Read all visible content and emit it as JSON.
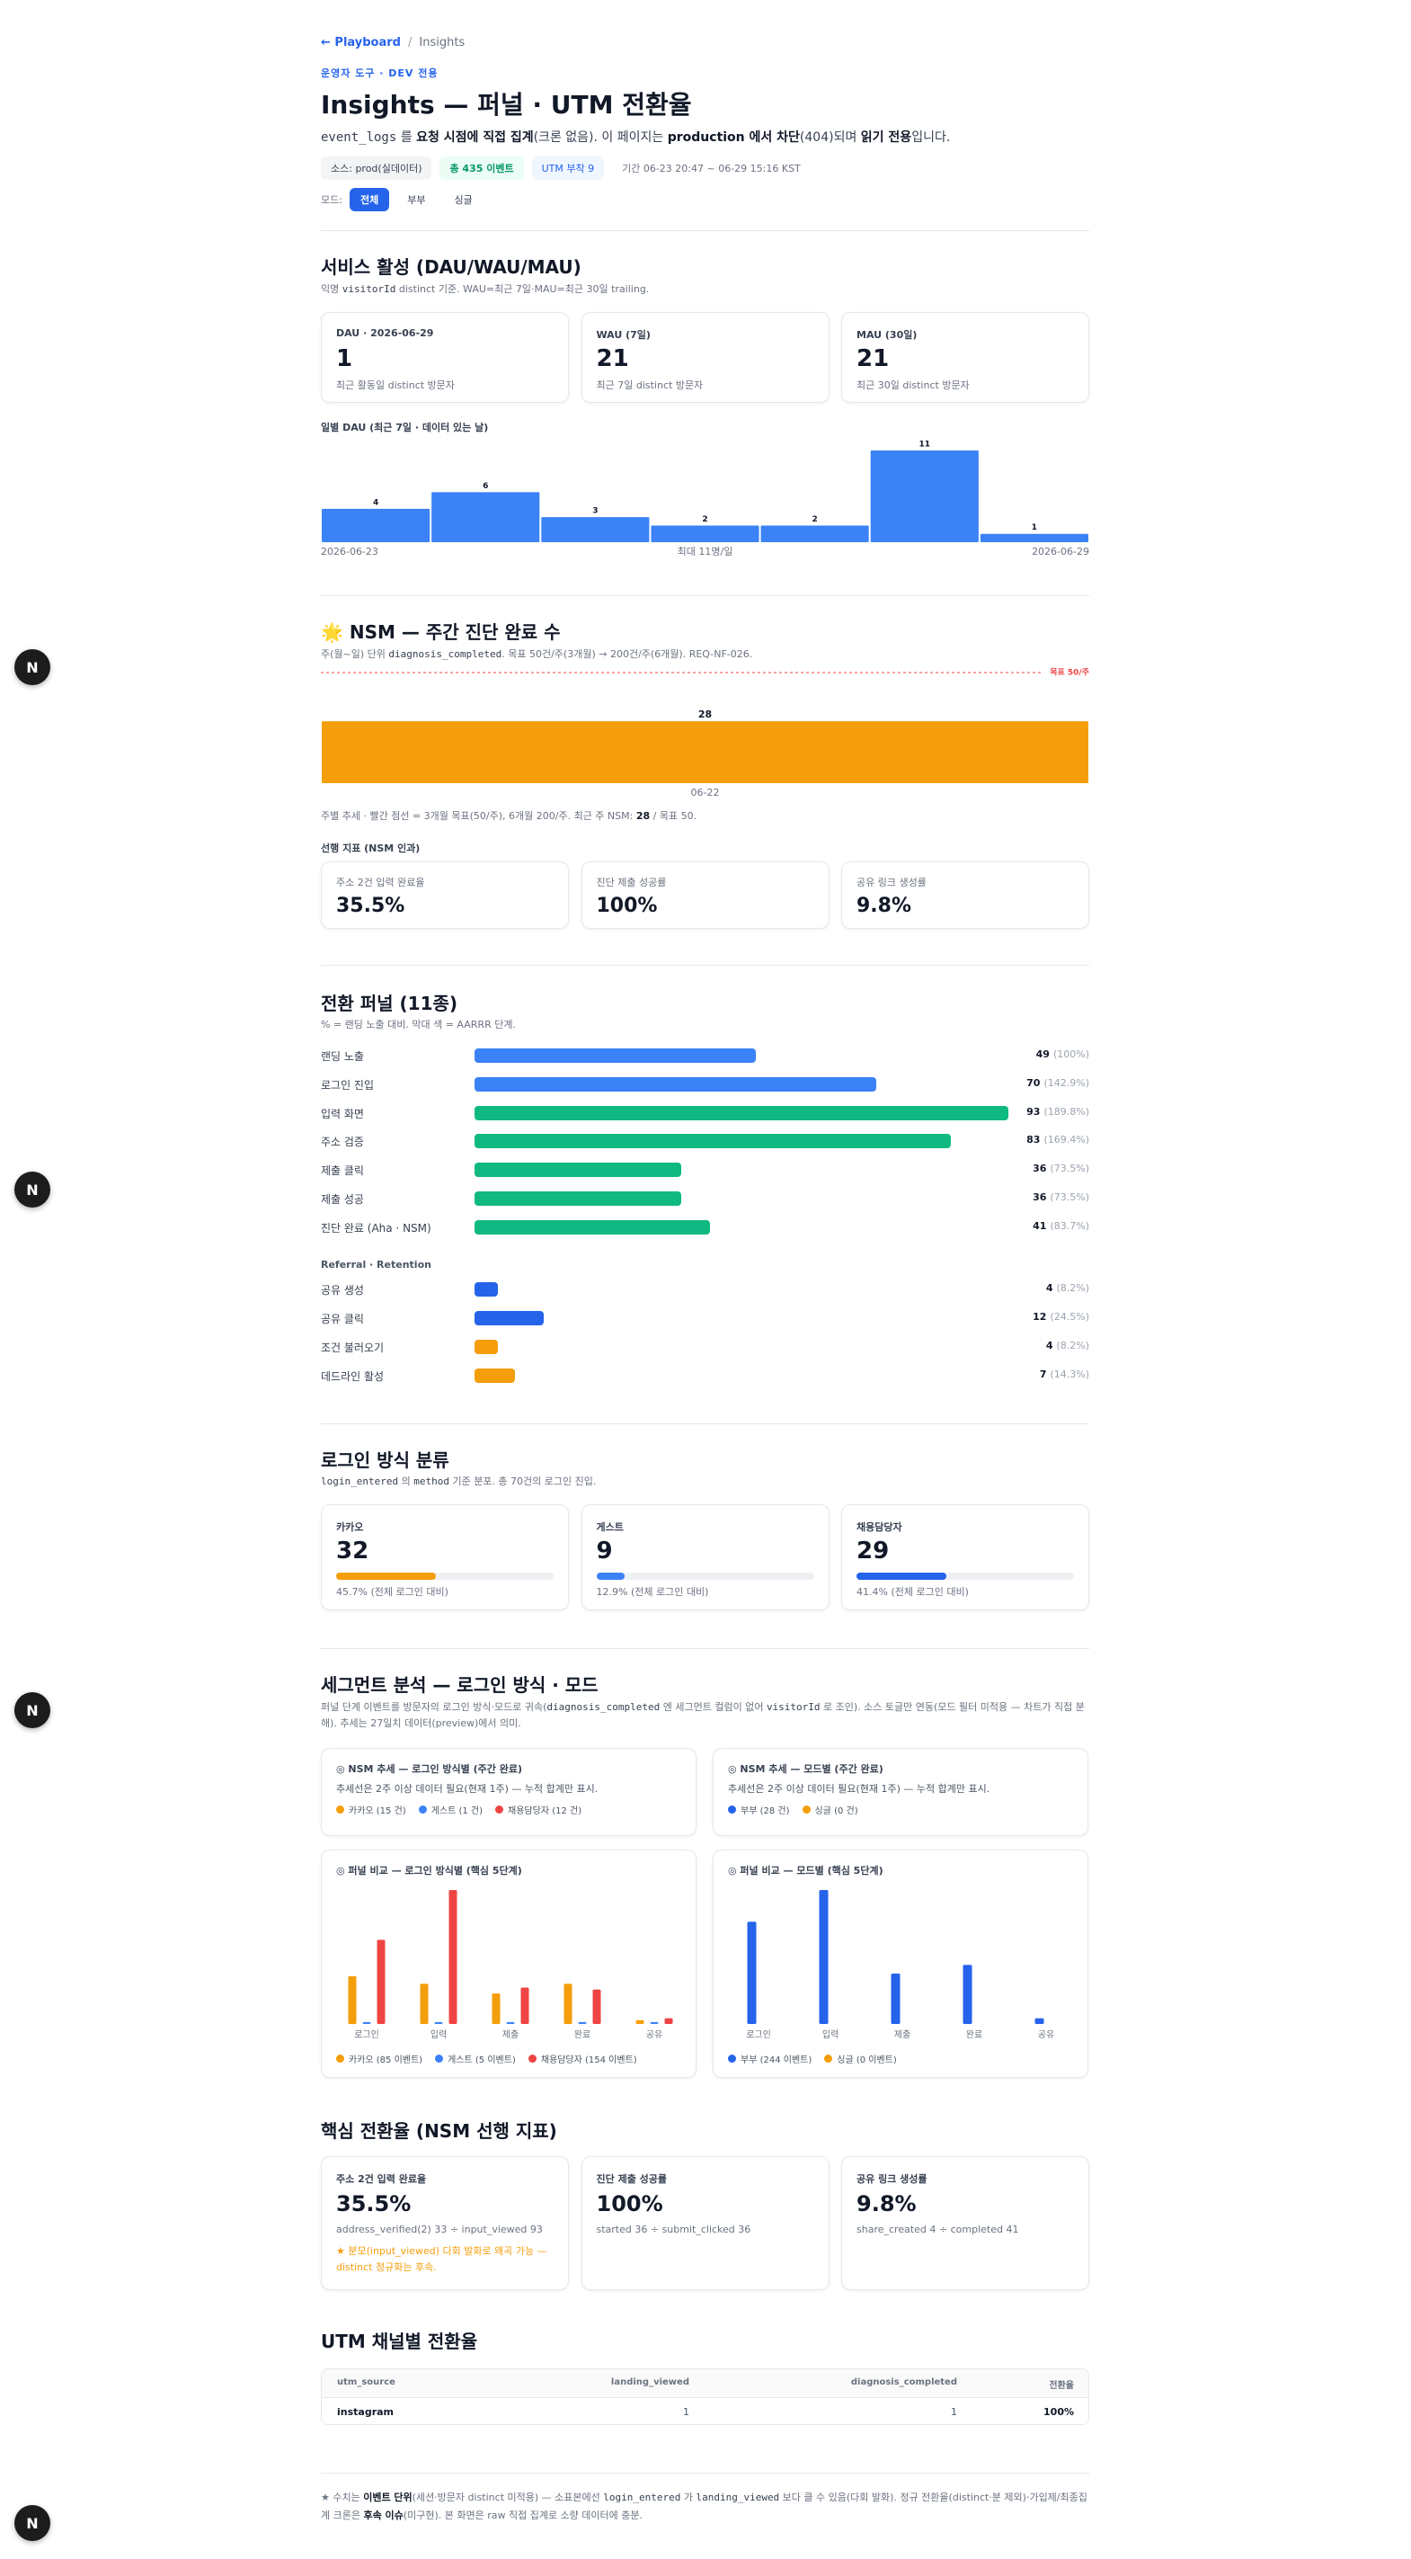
{
  "page": {
    "breadcrumb": {
      "link": "← Playboard",
      "sep": "/",
      "current": "Insights"
    },
    "eyebrow": "운영자 도구 · DEV 전용",
    "title": "Insights — 퍼널 · UTM 전환율",
    "description": [
      "event_logs",
      " 를 ",
      "요청 시점에 직접 집계",
      "(크론 없음). 이 페이지는 ",
      "production 에서 차단",
      "(404)되며 ",
      "읽기 전용",
      "입니다."
    ],
    "chips": [
      "소스: prod(실데이터)",
      "총 435 이벤트",
      "UTM 부착 9",
      "기간 06-23 20:47 ~ 06-29 15:16 KST"
    ],
    "mode": {
      "label": "모드:",
      "options": [
        "전체",
        "부부",
        "싱글"
      ]
    },
    "dev_indicator": "N"
  },
  "activity": {
    "title": "서비스 활성 (DAU/WAU/MAU)",
    "subtitle": [
      "익명 ",
      "visitorId",
      " distinct 기준. WAU=최근 7일·MAU=최근 30일 trailing."
    ],
    "cards": [
      {
        "label": "DAU · 2026-06-29",
        "value": "1",
        "note": "최근 활동일 distinct 방문자"
      },
      {
        "label": "WAU (7일)",
        "value": "21",
        "note": "최근 7일 distinct 방문자"
      },
      {
        "label": "MAU (30일)",
        "value": "21",
        "note": "최근 30일 distinct 방문자"
      }
    ]
  },
  "nsm": {
    "title": "🌟 NSM — 주간 진단 완료 수",
    "subtitle": [
      "주(월~일) 단위 ",
      "diagnosis_completed",
      ". 목표 50건/주(3개월) → 200건/주(6개월). REQ-NF-026."
    ],
    "note": [
      "주별 추세 · 빨간 점선 = 3개월 목표(50/주), 6개월 200/주. 최근 주 NSM: ",
      "28",
      " / 목표 50."
    ],
    "leading_title": "선행 지표 (NSM 인과)",
    "leading": [
      {
        "label": "주소 2건 입력 완료율",
        "value": "35.5%"
      },
      {
        "label": "진단 제출 성공률",
        "value": "100%"
      },
      {
        "label": "공유 링크 생성률",
        "value": "9.8%"
      }
    ]
  },
  "funnel": {
    "title": "전환 퍼널 (11종)",
    "subtitle": "% = 랜딩 노출 대비. 막대 색 = AARRR 단계."
  },
  "login": {
    "title": "로그인 방식 분류",
    "subtitle": [
      "login_entered",
      " 의 ",
      "method",
      " 기준 분포. 총 70건의 로그인 진입."
    ],
    "cards": [
      {
        "label": "카카오",
        "value": "32",
        "share": 45.7,
        "share_label": "45.7% (전체 로그인 대비)",
        "color": "#f59e0b"
      },
      {
        "label": "게스트",
        "value": "9",
        "share": 12.9,
        "share_label": "12.9% (전체 로그인 대비)",
        "color": "#3b82f6"
      },
      {
        "label": "채용담당자",
        "value": "29",
        "share": 41.4,
        "share_label": "41.4% (전체 로그인 대비)",
        "color": "#2563eb"
      }
    ]
  },
  "segment": {
    "title": "세그먼트 분석 — 로그인 방식 · 모드",
    "subtitle": [
      "퍼널 단계 이벤트를 방문자의 로그인 방식·모드로 귀속(",
      "diagnosis_completed",
      " 엔 세그먼트 컬럼이 없어 ",
      "visitorId",
      " 로 조인). 소스 토글만 연동(모드 필터 미적용 — 차트가 직접 분해). 추세는 27일치 데이터(preview)에서 의미."
    ],
    "trends": [
      {
        "title": "◎ NSM 추세 — 로그인 방식별 (주간 완료)",
        "note": "추세선은 2주 이상 데이터 필요(현재 1주) — 누적 합계만 표시.",
        "legend": [
          {
            "name": "카카오 (15 건)",
            "color": "#f59e0b"
          },
          {
            "name": "게스트 (1 건)",
            "color": "#3b82f6"
          },
          {
            "name": "채용담당자 (12 건)",
            "color": "#ef4444"
          }
        ]
      },
      {
        "title": "◎ NSM 추세 — 모드별 (주간 완료)",
        "note": "추세선은 2주 이상 데이터 필요(현재 1주) — 누적 합계만 표시.",
        "legend": [
          {
            "name": "부부 (28 건)",
            "color": "#2563eb"
          },
          {
            "name": "싱글 (0 건)",
            "color": "#f59e0b"
          }
        ]
      }
    ]
  },
  "core": {
    "title": "핵심 전환율 (NSM 선행 지표)",
    "cards": [
      {
        "label": "주소 2건 입력 완료율",
        "value": "35.5%",
        "formula": "address_verified(2) 33 ÷ input_viewed 93",
        "warning": "★ 분모(input_viewed) 다회 발화로 왜곡 가능 — distinct 정규화는 후속."
      },
      {
        "label": "진단 제출 성공률",
        "value": "100%",
        "formula": "started 36 ÷ submit_clicked 36"
      },
      {
        "label": "공유 링크 생성률",
        "value": "9.8%",
        "formula": "share_created 4 ÷ completed 41"
      }
    ]
  },
  "utm": {
    "title": "UTM 채널별 전환율",
    "table": {
      "headers": [
        "utm_source",
        "landing_viewed",
        "diagnosis_completed",
        "전환율"
      ],
      "rows": [
        [
          "instagram",
          "1",
          "1",
          "100%"
        ]
      ]
    }
  },
  "footnote": [
    "★ 수치는 ",
    "이벤트 단위",
    "(세션·방문자 distinct 미적용) — 소표본에선 ",
    "login_entered",
    " 가 ",
    "landing_viewed",
    " 보다 클 수 있음(다회 발화). 정규 전환율(distinct·분 제외)·가입제/최종집계 크론은 ",
    "후속 이슈",
    "(미구현). 본 화면은 raw 직접 집계로 소량 데이터에 충분."
  ],
  "chart_data": [
    {
      "type": "bar",
      "title": "일별 DAU (최근 7일 · 데이터 있는 날)",
      "categories": [
        "2026-06-23",
        null,
        null,
        null,
        null,
        null,
        "2026-06-29"
      ],
      "values": [
        4,
        6,
        3,
        2,
        2,
        11,
        1
      ],
      "ylim": [
        0,
        11
      ],
      "annotation": "최대 11명/일",
      "color": "#3b82f6"
    },
    {
      "type": "bar",
      "categories": [
        "06-22"
      ],
      "values": [
        28
      ],
      "ylim": [
        0,
        50
      ],
      "goal": {
        "value": 50,
        "label": "목표 50/주"
      },
      "color": "#f59e0b"
    },
    {
      "type": "hbar",
      "categories": [
        "랜딩 노출",
        "로그인 진입",
        "입력 화면",
        "주소 검증",
        "제출 클릭",
        "제출 성공",
        "진단 완료 (Aha · NSM)"
      ],
      "values": [
        49,
        70,
        93,
        83,
        36,
        36,
        41
      ],
      "shares": [
        "(100%)",
        "(142.9%)",
        "(189.8%)",
        "(169.4%)",
        "(73.5%)",
        "(73.5%)",
        "(83.7%)"
      ],
      "colors": [
        "#3b82f6",
        "#3b82f6",
        "#10b981",
        "#10b981",
        "#10b981",
        "#10b981",
        "#10b981"
      ],
      "xlim": [
        0,
        93
      ]
    },
    {
      "type": "hbar",
      "title": "Referral · Retention",
      "categories": [
        "공유 생성",
        "공유 클릭",
        "조건 불러오기",
        "데드라인 활성"
      ],
      "values": [
        4,
        12,
        4,
        7
      ],
      "shares": [
        "(8.2%)",
        "(24.5%)",
        "(8.2%)",
        "(14.3%)"
      ],
      "colors": [
        "#2563eb",
        "#2563eb",
        "#f59e0b",
        "#f59e0b"
      ],
      "xlim": [
        0,
        93
      ]
    },
    {
      "type": "grouped_bar",
      "title": "◎ 퍼널 비교 — 로그인 방식별 (핵심 5단계)",
      "categories": [
        "로그인",
        "입력",
        "제출",
        "완료",
        "공유"
      ],
      "ylim": [
        0,
        70
      ],
      "series": [
        {
          "name": "카카오 (85 이벤트)",
          "color": "#f59e0b",
          "values": [
            25,
            21,
            16,
            21,
            2
          ]
        },
        {
          "name": "게스트 (5 이벤트)",
          "color": "#3b82f6",
          "values": [
            1,
            1,
            1,
            1,
            1
          ]
        },
        {
          "name": "채용담당자 (154 이벤트)",
          "color": "#ef4444",
          "values": [
            44,
            70,
            19,
            18,
            3
          ]
        }
      ]
    },
    {
      "type": "grouped_bar",
      "title": "◎ 퍼널 비교 — 모드별 (핵심 5단계)",
      "categories": [
        "로그인",
        "입력",
        "제출",
        "완료",
        "공유"
      ],
      "ylim": [
        0,
        93
      ],
      "series": [
        {
          "name": "부부 (244 이벤트)",
          "color": "#2563eb",
          "values": [
            71,
            93,
            35,
            41,
            4
          ]
        },
        {
          "name": "싱글 (0 이벤트)",
          "color": "#f59e0b",
          "values": [
            0,
            0,
            0,
            0,
            0
          ]
        }
      ]
    }
  ]
}
